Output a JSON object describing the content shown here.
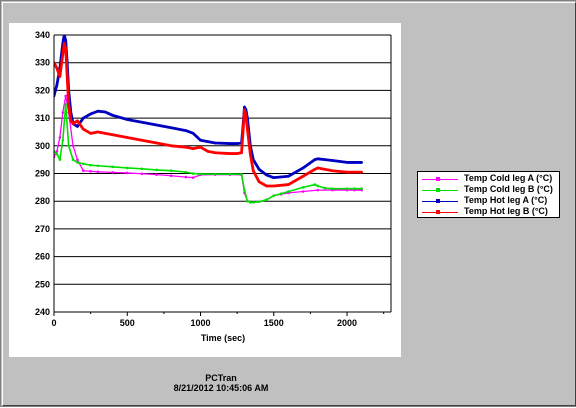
{
  "footer": {
    "title": "PCTran",
    "datetime": "8/21/2012 10:45:06 AM"
  },
  "colors": {
    "background": "#c0c0c0",
    "plot_background": "#ffffff",
    "cold_leg_a": "#ff00ff",
    "cold_leg_b": "#00e000",
    "hot_leg_a": "#0000c0",
    "hot_leg_b": "#ff0000"
  },
  "chart_data": {
    "type": "line",
    "title": "",
    "xlabel": "Time (sec)",
    "ylabel": "",
    "xlim": [
      0,
      2300
    ],
    "ylim": [
      240,
      340
    ],
    "xticks": [
      0,
      500,
      1000,
      1500,
      2000
    ],
    "yticks": [
      240,
      250,
      260,
      270,
      280,
      290,
      300,
      310,
      320,
      330,
      340
    ],
    "grid": "horizontal",
    "legend_position": "right",
    "series": [
      {
        "name": "Temp Cold leg A (°C)",
        "color": "#ff00ff",
        "x": [
          0,
          20,
          40,
          60,
          80,
          100,
          130,
          160,
          200,
          250,
          300,
          400,
          500,
          600,
          700,
          800,
          900,
          950,
          1000,
          1100,
          1200,
          1280,
          1300,
          1320,
          1340,
          1360,
          1400,
          1450,
          1500,
          1550,
          1600,
          1700,
          1800,
          1900,
          2000,
          2050,
          2100
        ],
        "y": [
          296,
          298,
          303,
          312,
          318,
          312,
          300,
          295,
          291,
          290.8,
          290.6,
          290.4,
          290.2,
          289.9,
          289.6,
          289.2,
          288.7,
          288.5,
          289.5,
          289.6,
          289.6,
          289.5,
          283,
          280,
          279.6,
          279.6,
          279.8,
          280.5,
          282,
          282.5,
          283,
          283.5,
          284,
          284,
          284,
          284,
          284
        ]
      },
      {
        "name": "Temp Cold leg B (°C)",
        "color": "#00e000",
        "x": [
          0,
          20,
          40,
          60,
          80,
          100,
          130,
          160,
          200,
          250,
          300,
          400,
          500,
          600,
          700,
          800,
          900,
          950,
          1000,
          1100,
          1200,
          1280,
          1300,
          1320,
          1340,
          1360,
          1400,
          1450,
          1500,
          1550,
          1600,
          1700,
          1780,
          1800,
          1850,
          1900,
          2000,
          2050,
          2100
        ],
        "y": [
          298,
          297,
          295,
          302,
          315,
          300,
          295,
          294,
          293.5,
          293,
          292.8,
          292.4,
          292,
          291.7,
          291.3,
          291,
          290.5,
          290,
          289.8,
          289.8,
          289.8,
          289.7,
          284,
          280,
          279.6,
          279.6,
          279.8,
          280.5,
          282,
          282.7,
          283.5,
          285,
          286,
          285.5,
          284.7,
          284.5,
          284.5,
          284.5,
          284.5
        ]
      },
      {
        "name": "Temp Hot leg A (°C)",
        "color": "#0000c0",
        "x": [
          0,
          20,
          40,
          60,
          70,
          80,
          90,
          100,
          115,
          130,
          160,
          200,
          250,
          300,
          350,
          400,
          500,
          600,
          700,
          800,
          900,
          950,
          1000,
          1050,
          1100,
          1200,
          1250,
          1280,
          1290,
          1300,
          1310,
          1320,
          1340,
          1360,
          1400,
          1450,
          1500,
          1600,
          1700,
          1780,
          1800,
          1850,
          1900,
          2000,
          2050,
          2100
        ],
        "y": [
          318,
          322,
          328,
          337,
          340,
          338,
          330,
          320,
          312,
          308,
          307,
          310,
          311.5,
          312.5,
          312.2,
          311,
          309.5,
          308.5,
          307.5,
          306.5,
          305.5,
          304.5,
          302,
          301.5,
          301,
          300.8,
          300.8,
          301,
          307,
          314,
          313,
          310,
          300,
          295,
          291.5,
          289.5,
          288.5,
          289,
          292,
          295,
          295.3,
          295,
          294.7,
          294,
          294,
          294
        ]
      },
      {
        "name": "Temp Hot leg B (°C)",
        "color": "#ff0000",
        "x": [
          0,
          20,
          40,
          60,
          70,
          80,
          90,
          100,
          115,
          130,
          160,
          200,
          250,
          300,
          350,
          400,
          500,
          600,
          700,
          800,
          900,
          950,
          1000,
          1050,
          1100,
          1200,
          1250,
          1280,
          1290,
          1300,
          1310,
          1320,
          1340,
          1360,
          1400,
          1450,
          1500,
          1600,
          1700,
          1780,
          1800,
          1850,
          1900,
          2000,
          2050,
          2100
        ],
        "y": [
          330,
          328,
          325,
          333,
          337,
          335,
          325,
          315,
          309,
          308,
          309,
          306,
          304.5,
          305,
          304.5,
          304,
          303,
          302,
          301,
          300,
          299.5,
          299,
          299.5,
          298,
          297.5,
          297.2,
          297.2,
          297.5,
          305,
          313,
          311,
          306,
          297,
          291,
          287,
          285.5,
          285.5,
          286,
          289,
          291.5,
          292,
          291.5,
          291,
          290.5,
          290.5,
          290.5
        ]
      }
    ]
  }
}
